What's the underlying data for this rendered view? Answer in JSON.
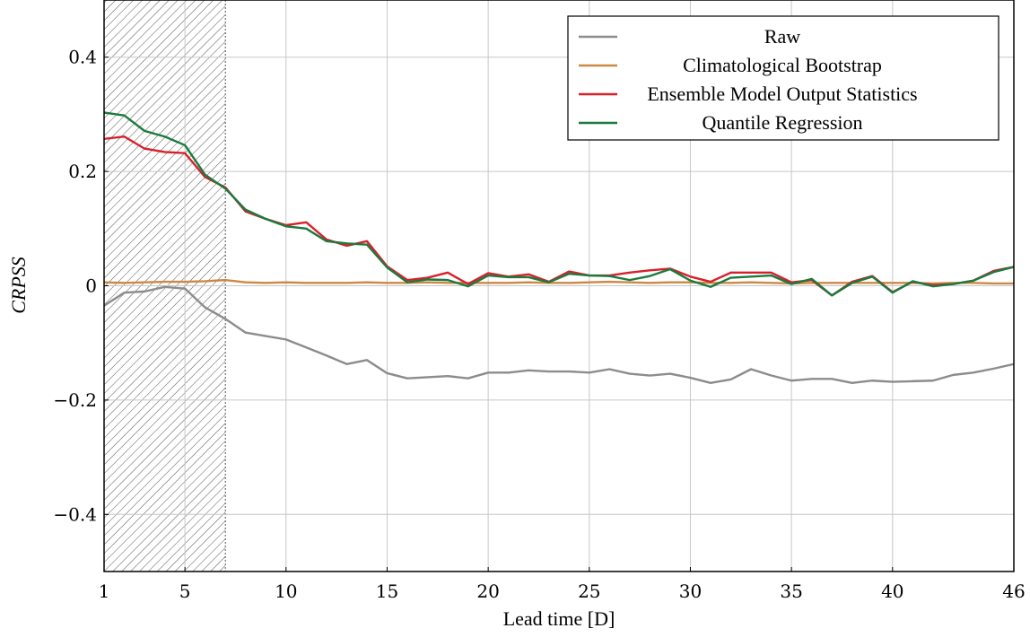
{
  "chart_data": {
    "type": "line",
    "xlabel": "Lead time [D]",
    "ylabel": "CRPSS",
    "xlim": [
      1,
      46
    ],
    "ylim": [
      -0.5,
      0.5
    ],
    "xticks": [
      1,
      5,
      10,
      15,
      20,
      25,
      30,
      35,
      40,
      46
    ],
    "xtick_labels": [
      "1",
      "5",
      "10",
      "15",
      "20",
      "25",
      "30",
      "35",
      "40",
      "46"
    ],
    "yticks": [
      -0.4,
      -0.2,
      0,
      0.2,
      0.4
    ],
    "ytick_labels": [
      "−0.4",
      "−0.2",
      "0",
      "0.2",
      "0.4"
    ],
    "grid": true,
    "legend_position": "top-right",
    "shaded_region": {
      "x_from": 1,
      "x_to": 7,
      "pattern": "hatched"
    },
    "x": [
      1,
      2,
      3,
      4,
      5,
      6,
      7,
      8,
      9,
      10,
      11,
      12,
      13,
      14,
      15,
      16,
      17,
      18,
      19,
      20,
      21,
      22,
      23,
      24,
      25,
      26,
      27,
      28,
      29,
      30,
      31,
      32,
      33,
      34,
      35,
      36,
      37,
      38,
      39,
      40,
      41,
      42,
      43,
      44,
      45,
      46
    ],
    "series": [
      {
        "name": "Raw",
        "color": "#8c8c8c",
        "values": [
          -0.035,
          -0.012,
          -0.01,
          -0.002,
          -0.005,
          -0.038,
          -0.058,
          -0.082,
          -0.088,
          -0.094,
          -0.108,
          -0.122,
          -0.137,
          -0.13,
          -0.153,
          -0.162,
          -0.16,
          -0.158,
          -0.162,
          -0.152,
          -0.152,
          -0.148,
          -0.15,
          -0.15,
          -0.152,
          -0.146,
          -0.154,
          -0.157,
          -0.154,
          -0.161,
          -0.17,
          -0.164,
          -0.146,
          -0.157,
          -0.166,
          -0.163,
          -0.163,
          -0.17,
          -0.166,
          -0.168,
          -0.167,
          -0.166,
          -0.156,
          -0.152,
          -0.145,
          -0.137
        ]
      },
      {
        "name": "Climatological Bootstrap",
        "color": "#cc8844",
        "values": [
          0.006,
          0.005,
          0.006,
          0.007,
          0.007,
          0.008,
          0.01,
          0.006,
          0.005,
          0.006,
          0.005,
          0.005,
          0.005,
          0.006,
          0.005,
          0.005,
          0.006,
          0.005,
          0.005,
          0.005,
          0.005,
          0.006,
          0.005,
          0.005,
          0.006,
          0.007,
          0.006,
          0.005,
          0.006,
          0.006,
          0.005,
          0.005,
          0.006,
          0.005,
          0.004,
          0.005,
          0.005,
          0.005,
          0.005,
          0.005,
          0.005,
          0.004,
          0.005,
          0.005,
          0.004,
          0.004
        ]
      },
      {
        "name": "Ensemble Model Output Statistics",
        "color": "#d8202a",
        "values": [
          0.257,
          0.261,
          0.24,
          0.234,
          0.232,
          0.19,
          0.172,
          0.13,
          0.117,
          0.106,
          0.111,
          0.081,
          0.07,
          0.078,
          0.034,
          0.01,
          0.014,
          0.023,
          0.003,
          0.022,
          0.016,
          0.02,
          0.007,
          0.025,
          0.018,
          0.018,
          0.023,
          0.027,
          0.03,
          0.016,
          0.007,
          0.023,
          0.023,
          0.023,
          0.006,
          0.01,
          -0.017,
          0.007,
          0.017,
          -0.011,
          0.007,
          0.001,
          0.003,
          0.009,
          0.026,
          0.033
        ]
      },
      {
        "name": "Quantile Regression",
        "color": "#1b7a3e",
        "values": [
          0.303,
          0.298,
          0.271,
          0.261,
          0.246,
          0.194,
          0.17,
          0.133,
          0.117,
          0.104,
          0.1,
          0.078,
          0.074,
          0.072,
          0.032,
          0.006,
          0.011,
          0.01,
          -0.001,
          0.018,
          0.015,
          0.015,
          0.006,
          0.021,
          0.018,
          0.017,
          0.01,
          0.017,
          0.029,
          0.009,
          -0.002,
          0.014,
          0.016,
          0.018,
          0.003,
          0.012,
          -0.017,
          0.005,
          0.016,
          -0.012,
          0.008,
          -0.001,
          0.003,
          0.009,
          0.024,
          0.033
        ]
      }
    ]
  }
}
